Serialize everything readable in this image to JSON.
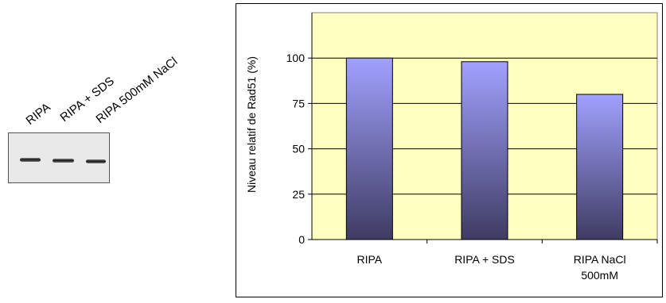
{
  "blot": {
    "lanes": [
      "RIPA",
      "RIPA + SDS",
      "RIPA 500mM NaCl"
    ]
  },
  "chart_data": {
    "type": "bar",
    "categories": [
      [
        "RIPA"
      ],
      [
        "RIPA + SDS"
      ],
      [
        "RIPA NaCl",
        "500mM"
      ]
    ],
    "values": [
      100,
      98,
      80
    ],
    "ylabel": "Niveau relatif de Rad51 (%)",
    "xlabel": "",
    "ylim": [
      0,
      125
    ],
    "yticks": [
      0,
      25,
      50,
      75,
      100
    ],
    "grid": true,
    "legend": "none",
    "colors": {
      "plot_background": "#ffffc0",
      "bar_top": "#a1a1ff",
      "bar_bottom": "#3e3c62",
      "grid": "#000000"
    }
  }
}
